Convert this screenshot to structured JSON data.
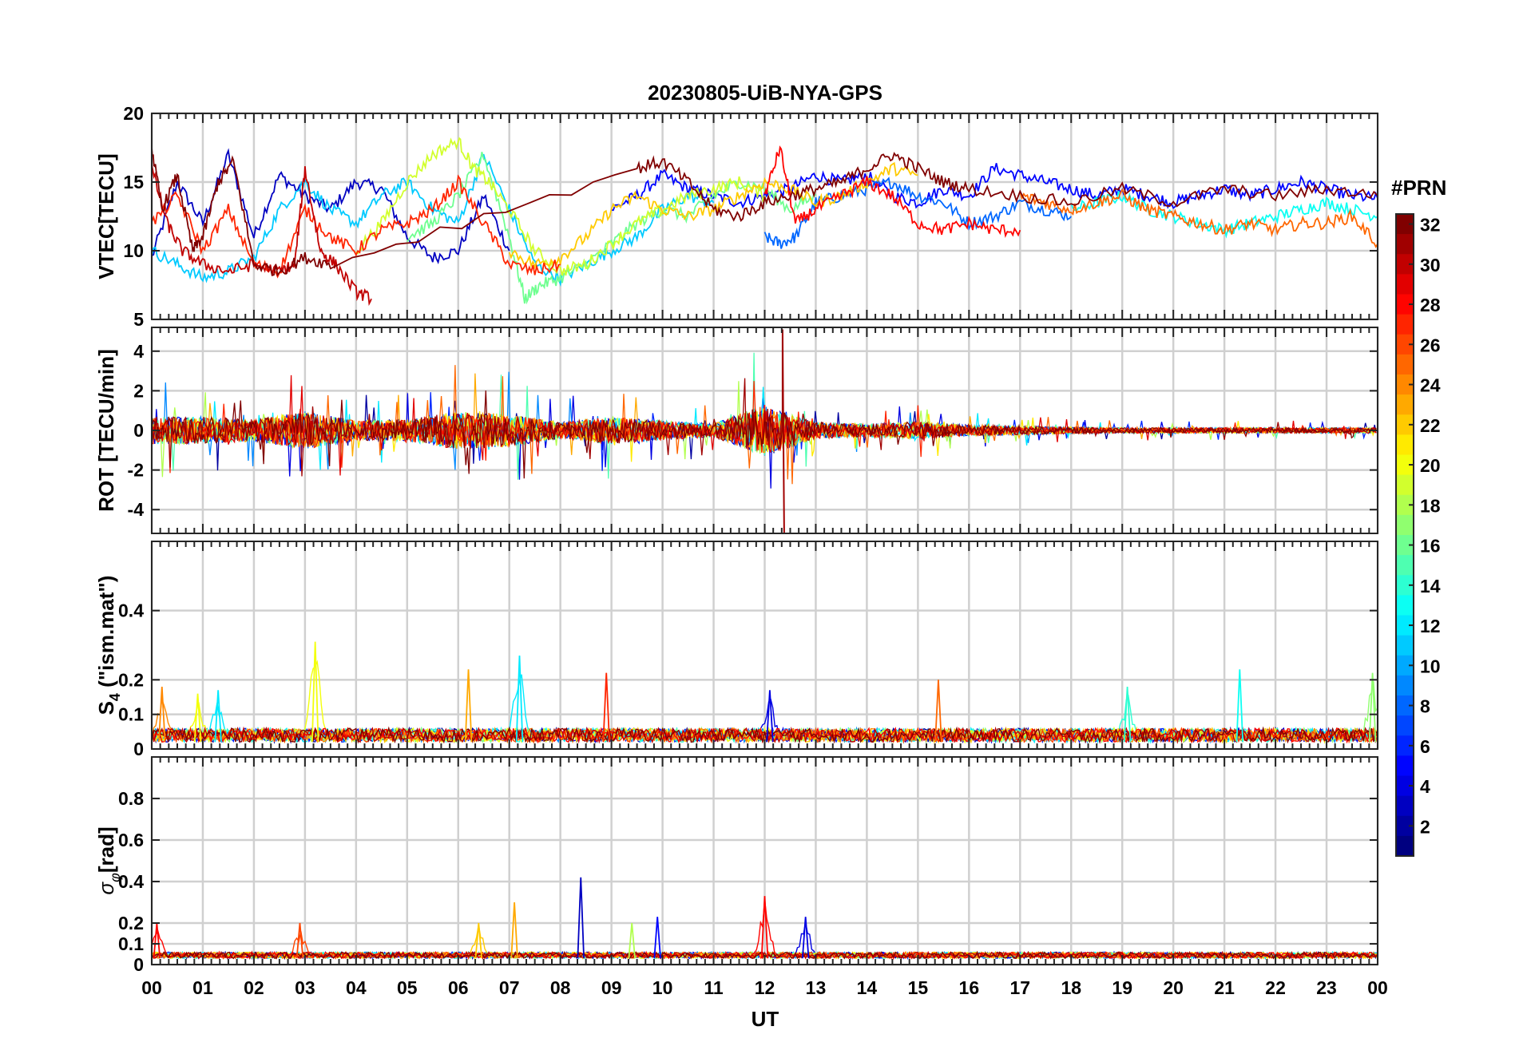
{
  "title": "20230805-UiB-NYA-GPS",
  "xlabel": "UT",
  "x_tick_labels": [
    "00",
    "01",
    "02",
    "03",
    "04",
    "05",
    "06",
    "07",
    "08",
    "09",
    "10",
    "11",
    "12",
    "13",
    "14",
    "15",
    "16",
    "17",
    "18",
    "19",
    "20",
    "21",
    "22",
    "23",
    "00"
  ],
  "colorbar": {
    "label": "#PRN",
    "range": [
      1,
      32
    ],
    "ticks": [
      2,
      4,
      6,
      8,
      10,
      12,
      14,
      16,
      18,
      20,
      22,
      24,
      26,
      28,
      30,
      32
    ],
    "colormap": "jet"
  },
  "chart_data": [
    {
      "type": "line",
      "panel": "vtec",
      "ylabel": "VTEC[TECU]",
      "ylim": [
        5,
        20
      ],
      "yticks": [
        5,
        10,
        15,
        20
      ],
      "x_unit": "UT hours",
      "xlim": [
        0,
        24
      ],
      "grid": true,
      "note_series": "one line per GPS PRN, colored by PRN (jet colormap)",
      "series": [
        {
          "prn": 3,
          "x": [
            0.0,
            0.5,
            1.0,
            1.5,
            2.0,
            2.5,
            3.0,
            3.5,
            4.0,
            4.5,
            5.0,
            5.5,
            6.0,
            6.5,
            7.0
          ],
          "y": [
            9.5,
            15,
            12,
            17,
            11,
            15.5,
            14,
            13,
            15,
            14.5,
            11,
            9.5,
            10,
            14,
            10
          ]
        },
        {
          "prn": 5,
          "x": [
            9.0,
            9.5,
            10.0,
            10.5,
            11.0,
            11.5,
            12.0,
            12.5,
            13.0,
            13.5,
            14.0,
            14.5,
            15.0,
            15.5,
            16.0,
            16.5,
            17.0,
            17.5,
            18.0,
            18.5,
            19.0,
            19.5,
            20.0,
            20.5,
            21.0,
            21.5,
            22.0,
            22.5,
            23.0,
            23.5,
            24.0
          ],
          "y": [
            13,
            14,
            15.5,
            14.5,
            14,
            13.5,
            14,
            14.5,
            15.5,
            15,
            15.5,
            14,
            13.5,
            14.5,
            14,
            16,
            15.5,
            15,
            14.5,
            14,
            14.5,
            14,
            13.5,
            14,
            14.5,
            14,
            14.5,
            15,
            14.5,
            14,
            13.8
          ]
        },
        {
          "prn": 8,
          "x": [
            12.0,
            12.3,
            12.6,
            13.0,
            13.5,
            14.0,
            14.5,
            15.0,
            15.5,
            16.0,
            16.5,
            17.0,
            17.5,
            18.0
          ],
          "y": [
            11,
            10.5,
            11,
            13.5,
            14,
            14.5,
            15,
            14,
            13.5,
            12,
            12.5,
            13.5,
            13,
            12.5
          ]
        },
        {
          "prn": 11,
          "x": [
            0.0,
            0.5,
            1.0,
            1.5,
            2.0,
            2.5,
            3.0,
            3.5,
            4.0,
            4.5,
            5.0,
            5.5,
            6.0,
            6.5,
            7.0,
            7.5,
            8.0,
            8.5,
            9.0,
            9.5,
            10.0,
            10.5,
            11.0
          ],
          "y": [
            10,
            9,
            8,
            8.5,
            9.5,
            13,
            15,
            13,
            12,
            14,
            15,
            13,
            12,
            17,
            13,
            9,
            8,
            9,
            10,
            11,
            13,
            14,
            13.5
          ]
        },
        {
          "prn": 13,
          "x": [
            18.0,
            18.5,
            19.0,
            19.5,
            20.0,
            20.5,
            21.0,
            21.5,
            22.0,
            22.5,
            23.0,
            23.5,
            24.0
          ],
          "y": [
            13,
            13.5,
            14,
            13,
            12.5,
            12,
            11.5,
            12,
            12.5,
            13,
            13.5,
            13,
            12.5
          ]
        },
        {
          "prn": 16,
          "x": [
            5.0,
            5.5,
            6.0,
            6.5,
            7.0,
            7.3,
            7.6,
            8.0,
            8.5,
            9.0,
            9.5,
            10.0,
            10.5,
            11.0,
            11.5,
            12.0,
            12.5,
            13.0
          ],
          "y": [
            11,
            12,
            14,
            17,
            11,
            6.5,
            7.5,
            8,
            9,
            10.5,
            12,
            13,
            12.5,
            14,
            15,
            14.5,
            13,
            14
          ]
        },
        {
          "prn": 19,
          "x": [
            4.0,
            4.5,
            5.0,
            5.5,
            6.0,
            6.3,
            6.6,
            7.0,
            7.5,
            8.0,
            8.5,
            9.0,
            9.5,
            10.0,
            10.5,
            11.0,
            11.5,
            12.0
          ],
          "y": [
            10,
            12,
            15,
            17,
            18,
            16,
            15,
            13,
            10,
            8.5,
            9,
            10.5,
            12,
            13,
            14,
            14.5,
            15,
            14
          ]
        },
        {
          "prn": 22,
          "x": [
            7.0,
            7.5,
            8.0,
            8.5,
            9.0,
            9.5,
            10.0,
            10.5,
            11.0,
            11.5,
            12.0,
            12.5,
            13.0,
            13.5,
            14.0,
            14.5,
            15.0
          ],
          "y": [
            10,
            9,
            9.5,
            11,
            13,
            14,
            13,
            12.5,
            13,
            14,
            15,
            14.5,
            13.5,
            14,
            15,
            16,
            15.5
          ]
        },
        {
          "prn": 25,
          "x": [
            17.0,
            17.5,
            18.0,
            18.5,
            19.0,
            19.5,
            20.0,
            20.5,
            21.0,
            21.5,
            22.0,
            22.5,
            23.0,
            23.5,
            24.0
          ],
          "y": [
            14,
            13.5,
            13,
            13.5,
            14,
            13,
            12.5,
            12,
            11.5,
            12,
            11.5,
            12,
            12,
            12.5,
            10.5
          ]
        },
        {
          "prn": 27,
          "x": [
            0.0,
            0.5,
            1.0,
            1.5,
            2.0,
            2.5,
            3.0,
            3.5,
            4.0,
            4.5,
            5.0,
            5.5,
            6.0,
            6.5,
            7.0,
            7.5,
            8.0
          ],
          "y": [
            12,
            14,
            10,
            13,
            9,
            8.5,
            13,
            11,
            10,
            11.5,
            12,
            13,
            15,
            12,
            9,
            8.5,
            9
          ]
        },
        {
          "prn": 28,
          "x": [
            12.0,
            12.3,
            12.6,
            13.0,
            13.5,
            14.0,
            14.5,
            15.0,
            15.5,
            16.0,
            16.5,
            17.0
          ],
          "y": [
            14,
            17.5,
            12,
            13,
            14,
            15,
            14,
            12,
            11.5,
            12,
            11.5,
            11.5
          ]
        },
        {
          "prn": 30,
          "x": [
            0.0,
            0.3,
            0.6,
            1.0,
            1.5,
            2.0,
            2.5,
            2.8,
            3.0,
            3.3,
            3.6,
            4.0,
            4.3
          ],
          "y": [
            16,
            12,
            10,
            9,
            8.5,
            9,
            8.5,
            9,
            16,
            10,
            9,
            7,
            6.5
          ]
        },
        {
          "prn": 32,
          "x": [
            0.0,
            0.2,
            0.5,
            0.8,
            1.0,
            1.3,
            1.6,
            2.0,
            2.5,
            3.0,
            3.5,
            9.5,
            10.0,
            10.5,
            11.0,
            11.5,
            12.0,
            12.5,
            13.0,
            13.5,
            14.0,
            14.5,
            15.0,
            15.5,
            16.0,
            17.0,
            18.0,
            19.0,
            20.0,
            21.0,
            22.0,
            23.0,
            24.0
          ],
          "y": [
            17.5,
            13,
            15.5,
            10,
            11,
            15,
            16.5,
            9,
            8.5,
            9.5,
            9,
            16,
            16.5,
            15,
            13,
            12.5,
            13.5,
            14,
            14.5,
            15,
            16,
            17,
            16,
            15,
            14.5,
            14,
            13.5,
            14.5,
            13.5,
            14.5,
            14,
            14.5,
            14
          ]
        }
      ]
    },
    {
      "type": "line",
      "panel": "rot",
      "ylabel": "ROT [TECU/min]",
      "ylim": [
        -5.2,
        5.2
      ],
      "yticks": [
        -4,
        -2,
        0,
        2,
        4
      ],
      "x_unit": "UT hours",
      "xlim": [
        0,
        24
      ],
      "grid": true,
      "note_series": "dense noisy lines around 0 for all PRNs; envelope amplitude per hour listed",
      "envelope_x": [
        0,
        1,
        2,
        3,
        4,
        5,
        6,
        7,
        8,
        9,
        10,
        11,
        12,
        13,
        14,
        15,
        16,
        17,
        18,
        19,
        20,
        21,
        22,
        23,
        24
      ],
      "envelope_amplitude": [
        2.5,
        2.5,
        2.0,
        3.5,
        1.8,
        2.0,
        3.5,
        3.0,
        1.5,
        2.5,
        1.8,
        1.2,
        4.8,
        1.5,
        1.2,
        1.6,
        1.0,
        0.8,
        0.6,
        0.5,
        0.5,
        0.5,
        0.5,
        0.5,
        0.5
      ]
    },
    {
      "type": "line",
      "panel": "s4",
      "ylabel": "S4 (\"ism.mat\")",
      "ylabel_main": "S",
      "ylabel_sub": "4",
      "ylabel_rest": " (\"ism.mat\")",
      "ylim": [
        0,
        0.6
      ],
      "yticks": [
        0,
        0.1,
        0.2,
        0.4
      ],
      "ytick_labels": [
        "0",
        "0.1",
        "0.2",
        "0.4"
      ],
      "x_unit": "UT hours",
      "xlim": [
        0,
        24
      ],
      "grid": true,
      "note_series": "noisy low-level lines for all PRNs; peaks listed",
      "peaks": [
        {
          "x": 0.2,
          "y": 0.18,
          "prn": 24
        },
        {
          "x": 0.9,
          "y": 0.16,
          "prn": 20
        },
        {
          "x": 1.3,
          "y": 0.17,
          "prn": 12
        },
        {
          "x": 3.2,
          "y": 0.31,
          "prn": 20
        },
        {
          "x": 6.2,
          "y": 0.23,
          "prn": 23
        },
        {
          "x": 7.2,
          "y": 0.27,
          "prn": 12
        },
        {
          "x": 8.9,
          "y": 0.22,
          "prn": 27
        },
        {
          "x": 12.1,
          "y": 0.17,
          "prn": 4
        },
        {
          "x": 15.4,
          "y": 0.2,
          "prn": 25
        },
        {
          "x": 19.1,
          "y": 0.18,
          "prn": 14
        },
        {
          "x": 21.3,
          "y": 0.23,
          "prn": 13
        },
        {
          "x": 23.9,
          "y": 0.22,
          "prn": 17
        }
      ]
    },
    {
      "type": "line",
      "panel": "sigma_phi",
      "ylabel": "σφ[rad]",
      "ylabel_main": "σ",
      "ylabel_sub": "φ",
      "ylabel_rest": "[rad]",
      "ylim": [
        0,
        1.0
      ],
      "yticks": [
        0,
        0.1,
        0.2,
        0.4,
        0.6,
        0.8
      ],
      "ytick_labels": [
        "0",
        "0.1",
        "0.2",
        "0.4",
        "0.6",
        "0.8"
      ],
      "x_unit": "UT hours",
      "xlim": [
        0,
        24
      ],
      "grid": true,
      "note_series": "noisy low-level lines for all PRNs; peaks listed",
      "peaks": [
        {
          "x": 0.1,
          "y": 0.2,
          "prn": 28
        },
        {
          "x": 2.9,
          "y": 0.2,
          "prn": 26
        },
        {
          "x": 7.1,
          "y": 0.3,
          "prn": 23
        },
        {
          "x": 8.4,
          "y": 0.42,
          "prn": 3
        },
        {
          "x": 9.9,
          "y": 0.23,
          "prn": 5
        },
        {
          "x": 12.0,
          "y": 0.33,
          "prn": 28
        },
        {
          "x": 12.8,
          "y": 0.23,
          "prn": 4
        },
        {
          "x": 9.4,
          "y": 0.2,
          "prn": 18
        },
        {
          "x": 6.4,
          "y": 0.2,
          "prn": 22
        }
      ]
    }
  ]
}
